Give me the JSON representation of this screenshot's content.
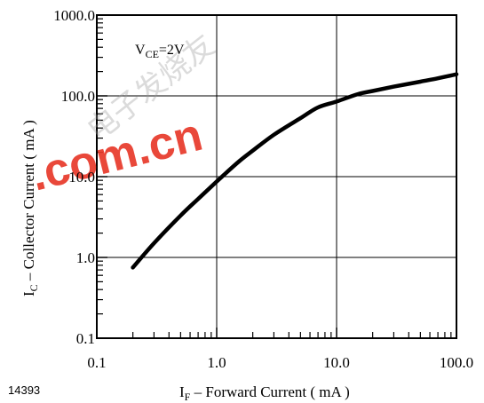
{
  "chart_data": {
    "type": "line",
    "xscale": "log",
    "yscale": "log",
    "xlim": [
      0.1,
      100
    ],
    "ylim": [
      0.1,
      1000
    ],
    "grid": true,
    "x_ticks": [
      "0.1",
      "1.0",
      "10.0",
      "100.0"
    ],
    "y_ticks": [
      "0.1",
      "1.0",
      "10.0",
      "100.0",
      "1000.0"
    ],
    "xlabel": {
      "main": "I",
      "sub": "F",
      "rest": " – Forward Current ( mA )"
    },
    "ylabel": {
      "main": "I",
      "sub": "C",
      "rest": " – Collector Current ( mA )"
    },
    "annotation": {
      "main": "V",
      "sub": "CE",
      "rest": "=2V"
    },
    "figure_id": "14393",
    "series": [
      {
        "x": [
          0.2,
          0.3,
          0.5,
          0.7,
          1.0,
          1.5,
          2.0,
          3.0,
          5.0,
          7.0,
          10.0,
          15.0,
          20.0,
          30.0,
          50.0,
          70.0,
          100.0
        ],
        "y": [
          0.75,
          1.5,
          3.3,
          5.3,
          8.7,
          15,
          21,
          33,
          53,
          72,
          85,
          105,
          115,
          130,
          150,
          165,
          185
        ]
      }
    ],
    "color": "#000000"
  },
  "watermark": {
    "text": ".com.cn",
    "glyphs": "电子发烧友"
  }
}
